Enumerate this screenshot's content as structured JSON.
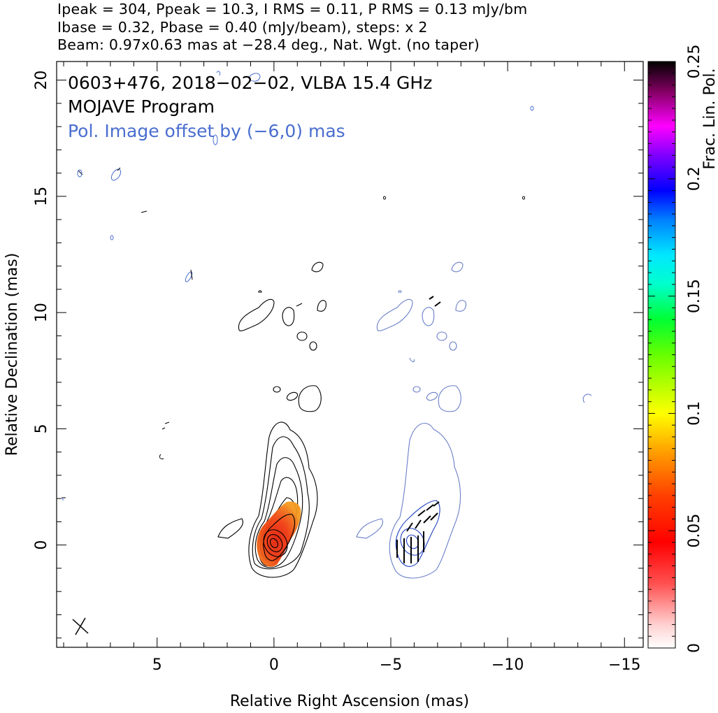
{
  "header": {
    "line1": "Ipeak = 304, Ppeak = 10.3, I RMS = 0.11, P RMS = 0.13 mJy/bm",
    "line2": "Ibase = 0.32, Pbase = 0.40 (mJy/beam), steps: x 2",
    "line3": "Beam: 0.97x0.63 mas at −28.4 deg., Nat. Wgt. (no taper)"
  },
  "annotations": {
    "source_line": "0603+476, 2018−02−02, VLBA 15.4 GHz",
    "program_line": "MOJAVE Program",
    "offset_line": "Pol. Image offset by (−6,0) mas"
  },
  "colors": {
    "total_intensity_contour": "#000000",
    "pol_contour": "#2040c0",
    "offset_contour": "#6a7fc8",
    "annotation_blue": "#4a6ecf",
    "vector": "#000000"
  },
  "chart_data": {
    "type": "heatmap",
    "xlabel": "Relative Right Ascension (mas)",
    "ylabel": "Relative Declination (mas)",
    "xlim": [
      9.3,
      -15.8
    ],
    "ylim": [
      -4.4,
      20.8
    ],
    "x_ticks": [
      5,
      0,
      -5,
      -10,
      -15
    ],
    "x_tick_labels": [
      "5",
      "0",
      "−5",
      "−10",
      "−15"
    ],
    "y_ticks": [
      0,
      5,
      10,
      15,
      20
    ],
    "y_tick_labels": [
      "0",
      "5",
      "10",
      "15",
      "20"
    ],
    "colorbar": {
      "label": "Frac. Lin. Pol.",
      "range": [
        0,
        0.25
      ],
      "ticks": [
        0,
        0.05,
        0.1,
        0.15,
        0.2,
        0.25
      ],
      "tick_labels": [
        "0",
        "0.05",
        "0.1",
        "0.15",
        "0.2",
        "0.25"
      ]
    },
    "intensity_peak_mJy_per_beam": 304,
    "pol_peak_mJy_per_beam": 10.3,
    "intensity_base_mJy_per_beam": 0.32,
    "pol_base_mJy_per_beam": 0.4,
    "contour_step_factor": 2,
    "beam": {
      "major_mas": 0.97,
      "minor_mas": 0.63,
      "pa_deg": -28.4
    },
    "pol_image_offset_mas": [
      -6,
      0
    ],
    "core_frac_pol_range": [
      0.02,
      0.07
    ]
  }
}
